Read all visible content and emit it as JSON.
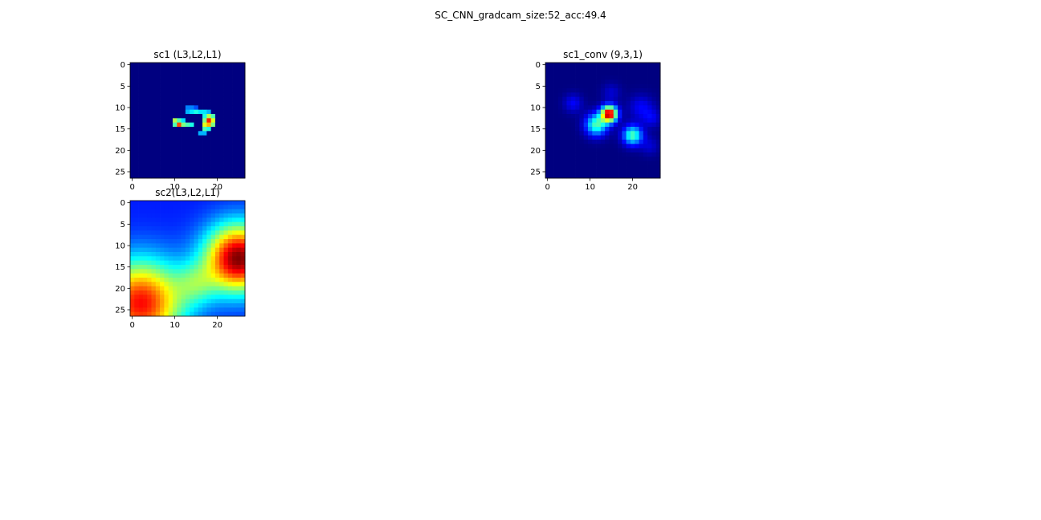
{
  "figure": {
    "suptitle": "SC_CNN_gradcam_size:52_acc:49.4"
  },
  "chart_data": [
    {
      "type": "heatmap",
      "title": "sc1 (L3,L2,L1)",
      "colormap": "jet",
      "grid": false,
      "shape": [
        27,
        27
      ],
      "xlim": [
        -0.5,
        26.5
      ],
      "ylim": [
        26.5,
        -0.5
      ],
      "xticks": [
        0,
        10,
        20
      ],
      "yticks": [
        0,
        5,
        10,
        15,
        20,
        25
      ],
      "background": 0.0,
      "cells": [
        [
          10,
          13,
          0.25
        ],
        [
          10,
          14,
          0.25
        ],
        [
          10,
          15,
          0.2
        ],
        [
          11,
          13,
          0.3
        ],
        [
          11,
          14,
          0.35
        ],
        [
          11,
          15,
          0.4
        ],
        [
          11,
          16,
          0.35
        ],
        [
          11,
          17,
          0.35
        ],
        [
          11,
          18,
          0.3
        ],
        [
          12,
          17,
          0.4
        ],
        [
          12,
          18,
          0.55
        ],
        [
          12,
          19,
          0.45
        ],
        [
          13,
          10,
          0.55
        ],
        [
          13,
          11,
          0.45
        ],
        [
          13,
          12,
          0.35
        ],
        [
          13,
          17,
          0.5
        ],
        [
          13,
          18,
          0.85
        ],
        [
          13,
          19,
          0.6
        ],
        [
          14,
          10,
          0.45
        ],
        [
          14,
          11,
          0.8
        ],
        [
          14,
          12,
          0.5
        ],
        [
          14,
          13,
          0.45
        ],
        [
          14,
          14,
          0.4
        ],
        [
          14,
          17,
          0.6
        ],
        [
          14,
          18,
          0.7
        ],
        [
          14,
          19,
          0.5
        ],
        [
          15,
          17,
          0.45
        ],
        [
          15,
          18,
          0.4
        ],
        [
          16,
          16,
          0.3
        ],
        [
          16,
          17,
          0.3
        ]
      ]
    },
    {
      "type": "heatmap",
      "title": "sc1_conv (9,3,1)",
      "colormap": "jet",
      "grid": false,
      "shape": [
        27,
        27
      ],
      "xlim": [
        -0.5,
        26.5
      ],
      "ylim": [
        26.5,
        -0.5
      ],
      "xticks": [
        0,
        10,
        20
      ],
      "yticks": [
        0,
        5,
        10,
        15,
        20,
        25
      ],
      "background": 0.0,
      "blobs": [
        {
          "row": 11.5,
          "col": 14.5,
          "sigma": 1.3,
          "amp": 0.95
        },
        {
          "row": 14.0,
          "col": 11.5,
          "sigma": 1.8,
          "amp": 0.45
        },
        {
          "row": 16.5,
          "col": 20.0,
          "sigma": 1.6,
          "amp": 0.45
        },
        {
          "row": 9.0,
          "col": 6.0,
          "sigma": 1.5,
          "amp": 0.12
        },
        {
          "row": 10.0,
          "col": 22.0,
          "sigma": 2.0,
          "amp": 0.12
        },
        {
          "row": 6.5,
          "col": 15.0,
          "sigma": 1.5,
          "amp": 0.08
        },
        {
          "row": 12.5,
          "col": 24.5,
          "sigma": 1.5,
          "amp": 0.1
        },
        {
          "row": 19.0,
          "col": 24.0,
          "sigma": 1.5,
          "amp": 0.08
        }
      ]
    },
    {
      "type": "heatmap",
      "title": "sc2(L3,L2,L1)",
      "colormap": "jet",
      "grid": false,
      "shape": [
        27,
        27
      ],
      "xlim": [
        -0.5,
        26.5
      ],
      "ylim": [
        26.5,
        -0.5
      ],
      "xticks": [
        0,
        10,
        20
      ],
      "yticks": [
        0,
        5,
        10,
        15,
        20,
        25
      ],
      "background": 0.15,
      "blobs": [
        {
          "row": 13.0,
          "col": 25.0,
          "sigma": 5.5,
          "amp": 0.85
        },
        {
          "row": 23.5,
          "col": 2.0,
          "sigma": 7.0,
          "amp": 0.72
        },
        {
          "row": 19.0,
          "col": 15.0,
          "sigma": 3.5,
          "amp": 0.2
        }
      ]
    }
  ]
}
